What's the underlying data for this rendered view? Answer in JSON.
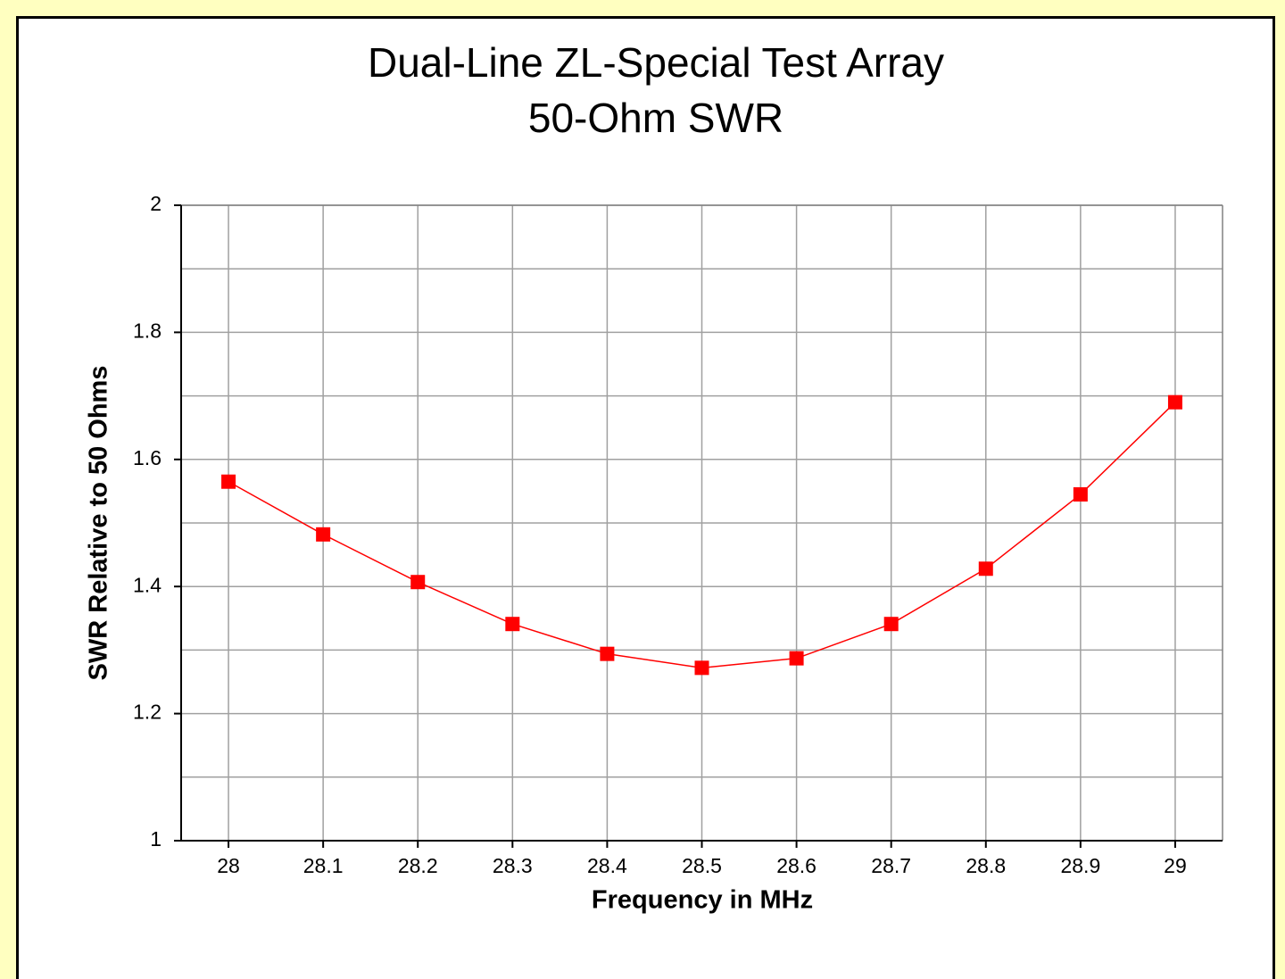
{
  "chart_data": {
    "type": "line",
    "title": "Dual-Line ZL-Special Test Array",
    "subtitle": "50-Ohm SWR",
    "xlabel": "Frequency in MHz",
    "ylabel": "SWR Relative to 50 Ohms",
    "x": [
      28,
      28.1,
      28.2,
      28.3,
      28.4,
      28.5,
      28.6,
      28.7,
      28.8,
      28.9,
      29
    ],
    "series": [
      {
        "name": "SWR",
        "color": "#ff0000",
        "values": [
          1.565,
          1.482,
          1.407,
          1.341,
          1.294,
          1.272,
          1.287,
          1.341,
          1.428,
          1.545,
          1.69
        ]
      }
    ],
    "xlim": [
      27.95,
      29.05
    ],
    "xticks": [
      28,
      28.1,
      28.2,
      28.3,
      28.4,
      28.5,
      28.6,
      28.7,
      28.8,
      28.9,
      29
    ],
    "ylim": [
      1,
      2
    ],
    "yticks": [
      1,
      1.2,
      1.4,
      1.6,
      1.8,
      2
    ],
    "yminorticks": [
      1.1,
      1.3,
      1.5,
      1.7,
      1.9
    ],
    "grid": true,
    "marker": "square"
  }
}
